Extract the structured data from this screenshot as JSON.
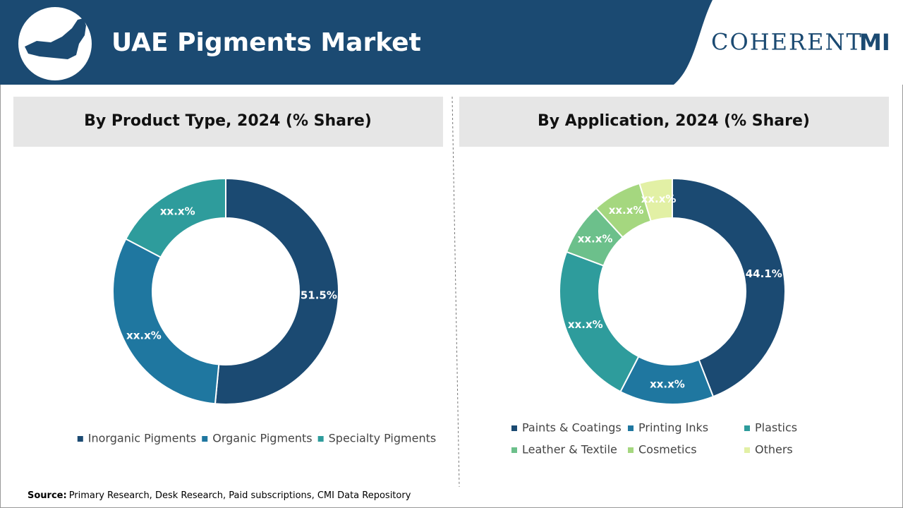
{
  "header": {
    "title": "UAE Pigments Market"
  },
  "logo": {
    "name": "COHERENT",
    "suffix": "MI"
  },
  "chart_data": [
    {
      "type": "pie",
      "donut": true,
      "title": "By Product Type, 2024 (% Share)",
      "categories": [
        "Inorganic Pigments",
        "Organic Pigments",
        "Specialty Pigments"
      ],
      "values": [
        51.5,
        31.2,
        17.3
      ],
      "value_labels": [
        "51.5%",
        "xx.x%",
        "xx.x%"
      ],
      "colors": [
        "#1b4a72",
        "#1f77a0",
        "#2e9c9c"
      ]
    },
    {
      "type": "pie",
      "donut": true,
      "title": "By Application, 2024 (% Share)",
      "categories": [
        "Paints & Coatings",
        "Printing Inks",
        "Plastics",
        "Leather & Textile",
        "Cosmetics",
        "Others"
      ],
      "values": [
        44.1,
        13.5,
        23.1,
        7.5,
        7.1,
        4.7
      ],
      "value_labels": [
        "44.1%",
        "xx.x%",
        "xx.x%",
        "xx.x%",
        "xx.x%",
        "xx.x%"
      ],
      "colors": [
        "#1b4a72",
        "#1f77a0",
        "#2e9c9c",
        "#6cc08b",
        "#a5d77f",
        "#e2f0a5"
      ]
    }
  ],
  "source": {
    "label": "Source:",
    "text": "Primary Research, Desk Research, Paid subscriptions, CMI Data Repository"
  }
}
